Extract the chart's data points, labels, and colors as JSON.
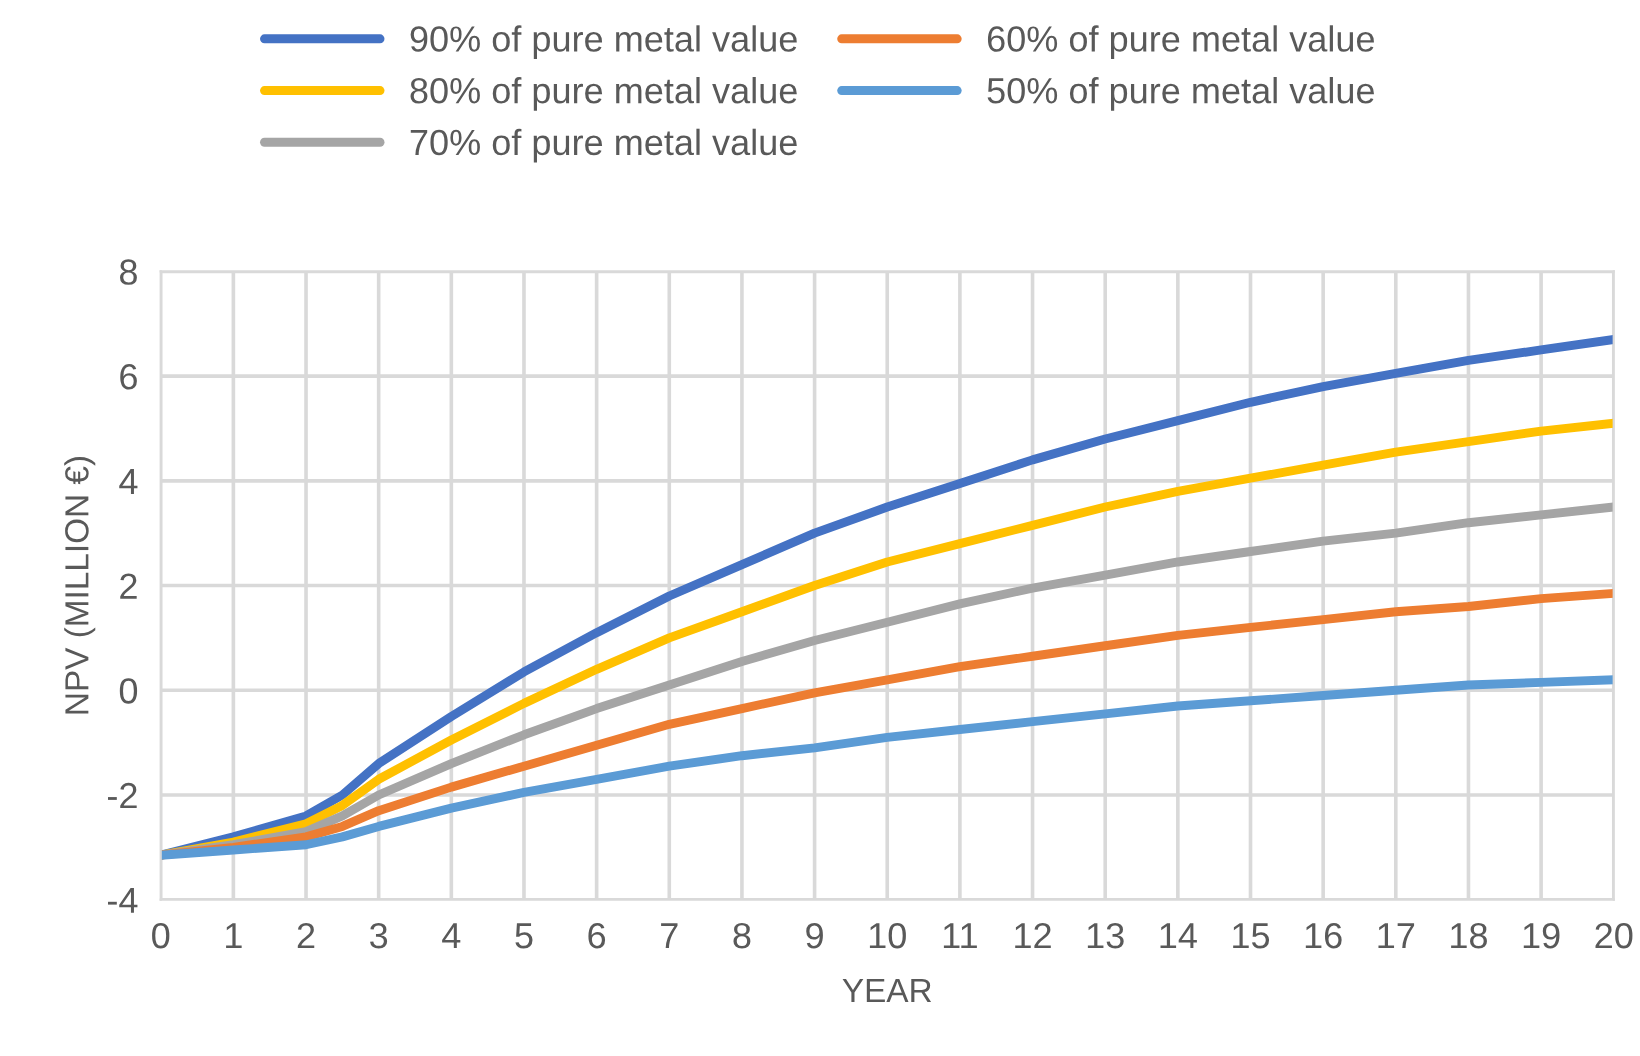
{
  "chart_data": {
    "type": "line",
    "xlabel": "YEAR",
    "ylabel": "NPV (MILLION €)",
    "x": [
      0,
      1,
      2,
      2.5,
      3,
      4,
      5,
      6,
      7,
      8,
      9,
      10,
      11,
      12,
      13,
      14,
      15,
      16,
      17,
      18,
      19,
      20
    ],
    "xlim": [
      0,
      20
    ],
    "xticks": [
      0,
      1,
      2,
      3,
      4,
      5,
      6,
      7,
      8,
      9,
      10,
      11,
      12,
      13,
      14,
      15,
      16,
      17,
      18,
      19,
      20
    ],
    "ylim": [
      -4,
      8
    ],
    "yticks": [
      -4,
      -2,
      0,
      2,
      4,
      6,
      8
    ],
    "grid": true,
    "legend": "top",
    "marker": "none",
    "line_style": "solid",
    "series": [
      {
        "name": "90% of pure metal value",
        "color": "#4472c4",
        "values": [
          -3.15,
          -2.8,
          -2.4,
          -2.0,
          -1.4,
          -0.5,
          0.35,
          1.1,
          1.8,
          2.4,
          3.0,
          3.5,
          3.95,
          4.4,
          4.8,
          5.15,
          5.5,
          5.8,
          6.05,
          6.3,
          6.5,
          6.7
        ]
      },
      {
        "name": "80% of pure metal value",
        "color": "#ffc000",
        "values": [
          -3.15,
          -2.9,
          -2.55,
          -2.2,
          -1.7,
          -0.95,
          -0.25,
          0.4,
          1.0,
          1.5,
          2.0,
          2.45,
          2.8,
          3.15,
          3.5,
          3.8,
          4.05,
          4.3,
          4.55,
          4.75,
          4.95,
          5.1
        ]
      },
      {
        "name": "70% of pure metal value",
        "color": "#a5a5a5",
        "values": [
          -3.15,
          -2.95,
          -2.7,
          -2.4,
          -2.0,
          -1.4,
          -0.85,
          -0.35,
          0.1,
          0.55,
          0.95,
          1.3,
          1.65,
          1.95,
          2.2,
          2.45,
          2.65,
          2.85,
          3.0,
          3.2,
          3.35,
          3.5
        ]
      },
      {
        "name": "60% of pure metal value",
        "color": "#ed7d31",
        "values": [
          -3.15,
          -3.0,
          -2.8,
          -2.6,
          -2.3,
          -1.85,
          -1.45,
          -1.05,
          -0.65,
          -0.35,
          -0.05,
          0.2,
          0.45,
          0.65,
          0.85,
          1.05,
          1.2,
          1.35,
          1.5,
          1.6,
          1.75,
          1.85
        ]
      },
      {
        "name": "50% of pure metal value",
        "color": "#5b9bd5",
        "values": [
          -3.15,
          -3.05,
          -2.95,
          -2.8,
          -2.6,
          -2.25,
          -1.95,
          -1.7,
          -1.45,
          -1.25,
          -1.1,
          -0.9,
          -0.75,
          -0.6,
          -0.45,
          -0.3,
          -0.2,
          -0.1,
          0.0,
          0.1,
          0.15,
          0.2
        ]
      }
    ]
  }
}
